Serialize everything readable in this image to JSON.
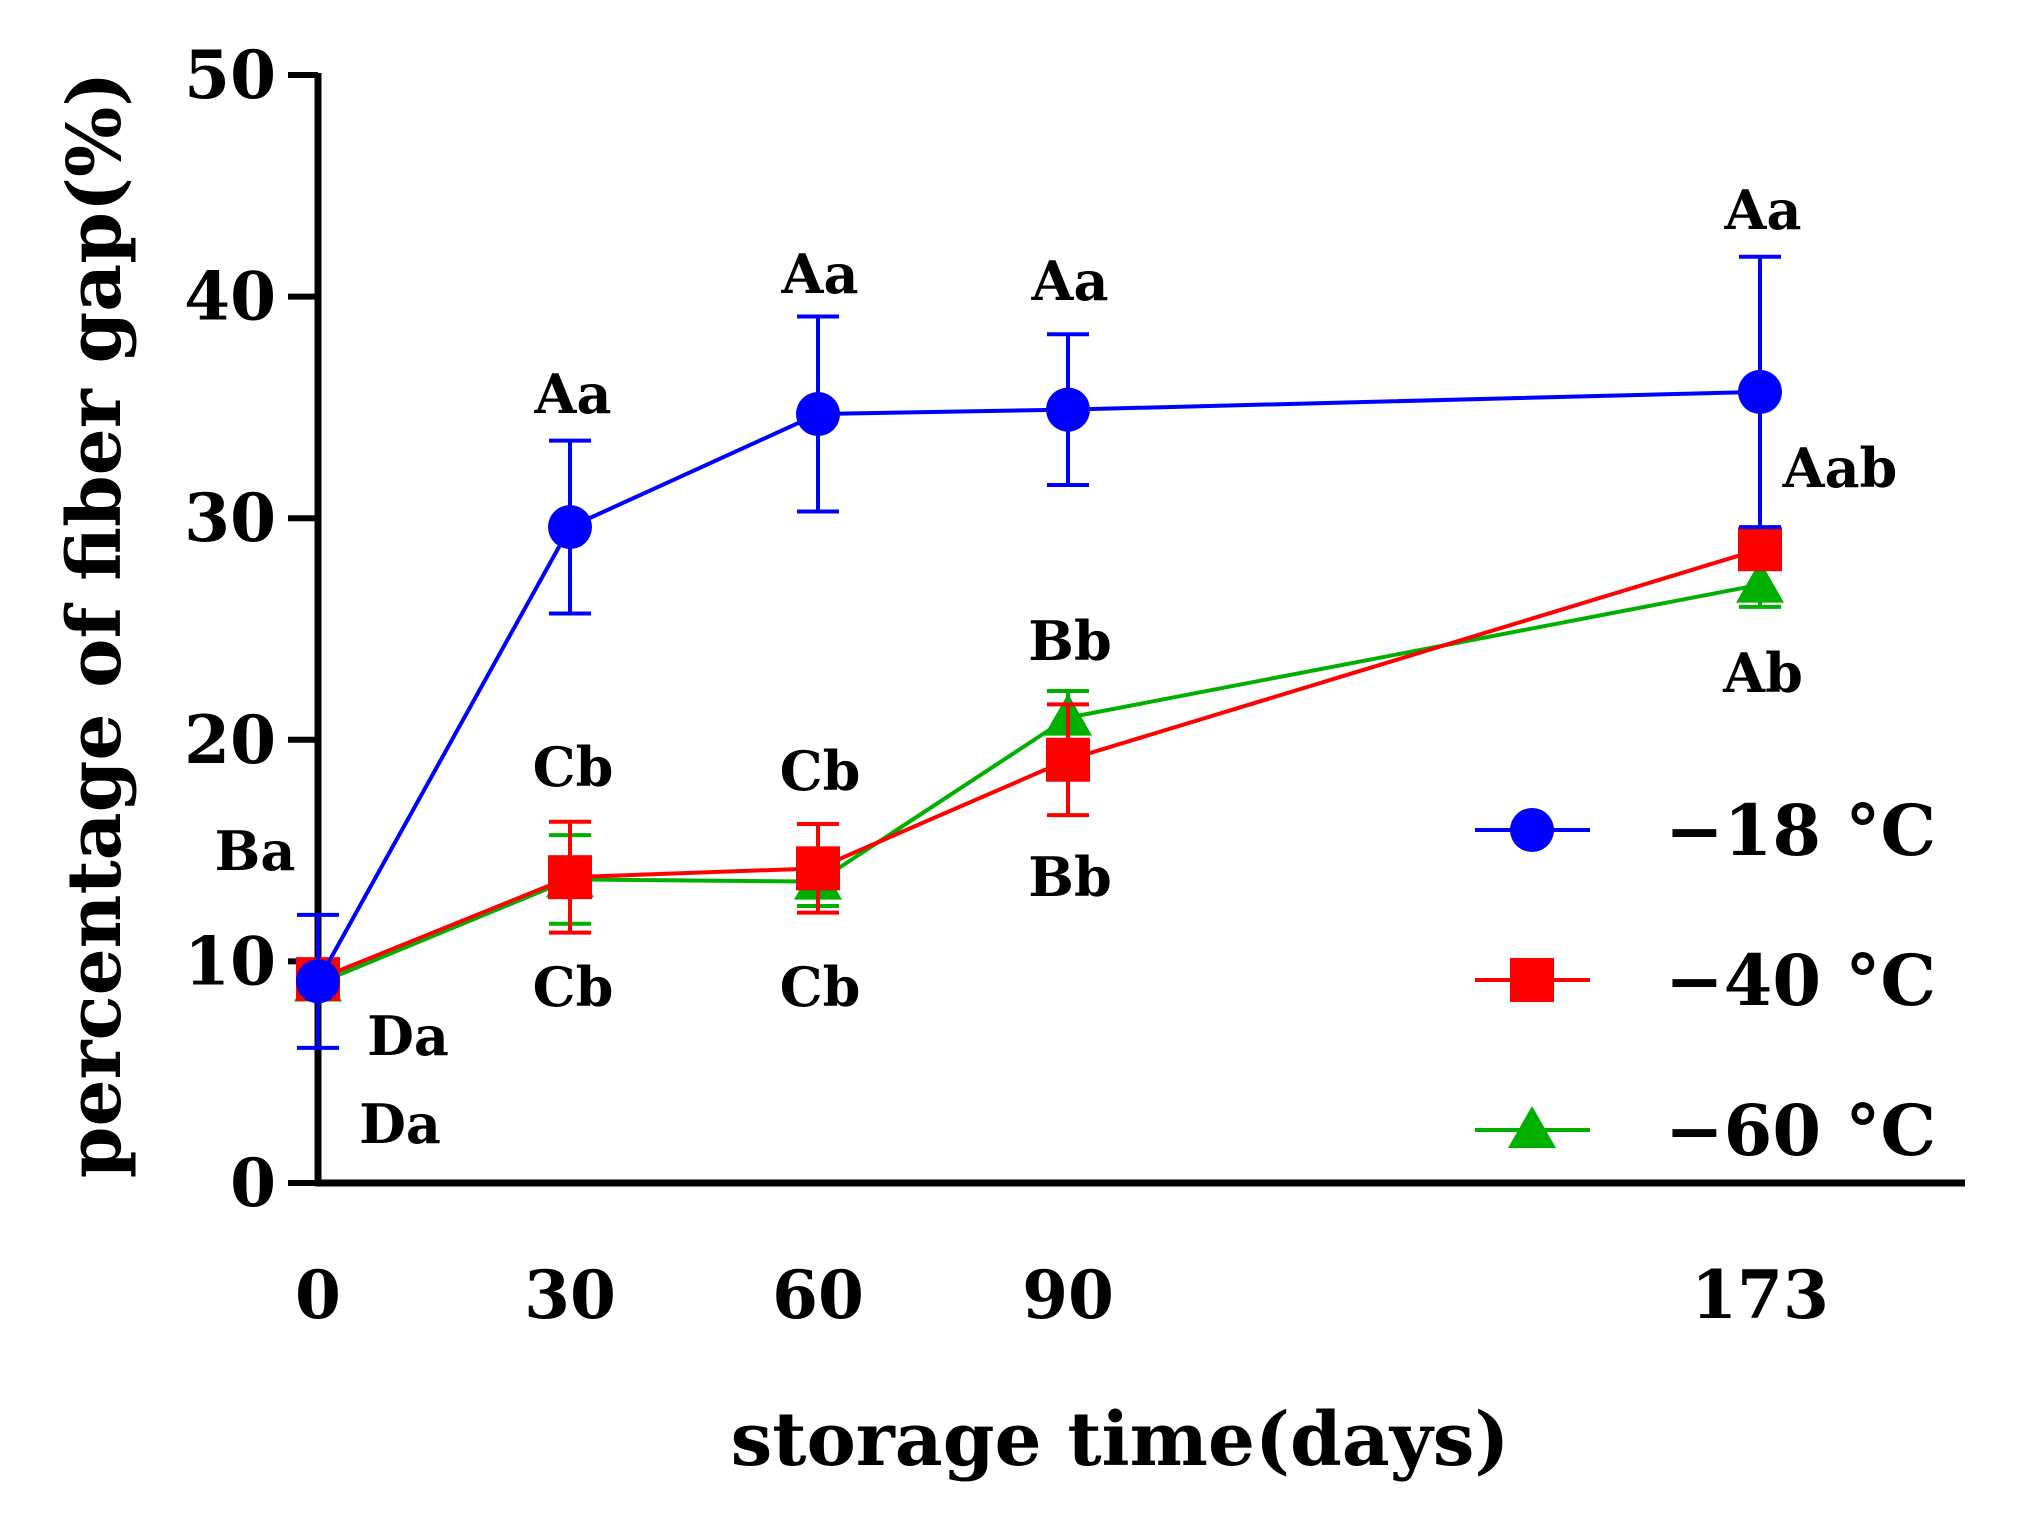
{
  "chart_data": {
    "type": "line",
    "title": "",
    "xlabel": "storage time(days)",
    "ylabel": "percentage of fiber gap(%)",
    "x": [
      0,
      30,
      60,
      90,
      173
    ],
    "x_tick_labels": [
      "0",
      "30",
      "60",
      "90",
      "173"
    ],
    "ylim": [
      0,
      50
    ],
    "y_ticks": [
      0,
      10,
      20,
      30,
      40,
      50
    ],
    "y_tick_labels": [
      "0",
      "10",
      "20",
      "30",
      "40",
      "50"
    ],
    "grid": false,
    "legend_position": "bottom-right",
    "series": [
      {
        "name": "−18 °C",
        "color": "#0000ff",
        "marker": "circle",
        "values": [
          9.1,
          29.6,
          34.7,
          34.9,
          35.7
        ],
        "errors": [
          3.0,
          3.9,
          4.4,
          3.4,
          6.1
        ],
        "letters": [
          "Ba",
          "Aa",
          "Aa",
          "Aa",
          "Aa"
        ]
      },
      {
        "name": "−40 °C",
        "color": "#ff0000",
        "marker": "square",
        "values": [
          9.2,
          13.8,
          14.2,
          19.1,
          28.6
        ],
        "errors": [
          0.6,
          2.5,
          2.0,
          2.5,
          0.6
        ],
        "letters": [
          "Da",
          "Cb",
          "Cb",
          "Bb",
          "Aab"
        ]
      },
      {
        "name": "−60 °C",
        "color": "#00b000",
        "marker": "triangle",
        "values": [
          9.0,
          13.7,
          13.6,
          21.0,
          27.0
        ],
        "errors": [
          0.5,
          2.0,
          1.1,
          1.2,
          1.0
        ],
        "letters": [
          "Da",
          "Cb",
          "Cb",
          "Bb",
          "Ab"
        ]
      }
    ]
  }
}
